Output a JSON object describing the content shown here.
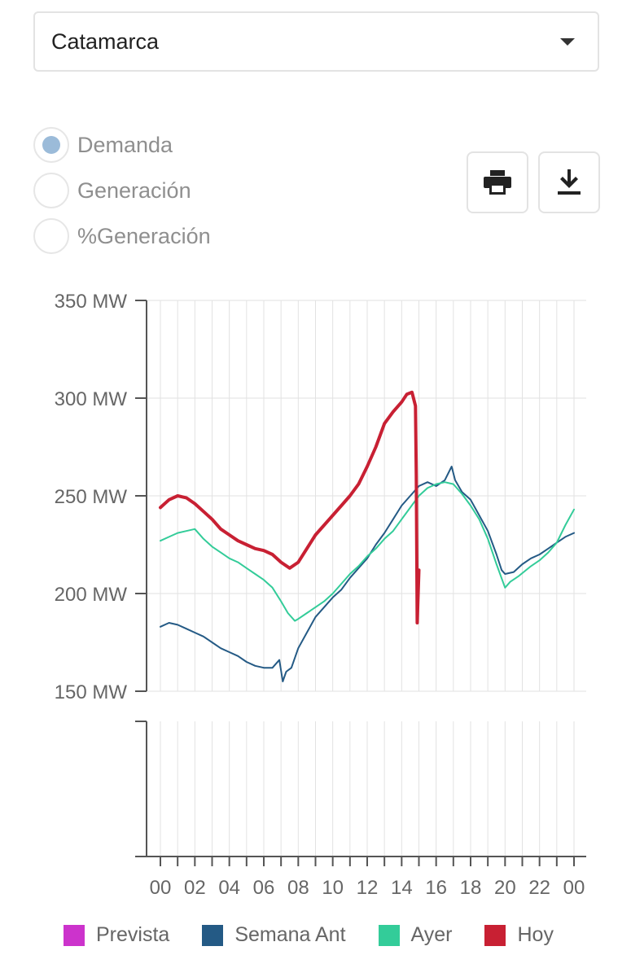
{
  "selector": {
    "value": "Catamarca"
  },
  "radios": [
    {
      "label": "Demanda",
      "selected": true
    },
    {
      "label": "Generación",
      "selected": false
    },
    {
      "label": "%Generación",
      "selected": false
    }
  ],
  "buttons": {
    "print_icon": "print-icon",
    "download_icon": "download-icon"
  },
  "chart_data": {
    "type": "line",
    "y_unit": "MW",
    "ylim": [
      150,
      350
    ],
    "yticks": [
      "350 MW",
      "300 MW",
      "250 MW",
      "200 MW",
      "150 MW"
    ],
    "xlim": [
      0,
      24
    ],
    "xticks": [
      "00",
      "02",
      "04",
      "06",
      "08",
      "10",
      "12",
      "14",
      "16",
      "18",
      "20",
      "22",
      "00"
    ],
    "grid": true,
    "legend_position": "bottom",
    "series": [
      {
        "name": "Prevista",
        "color": "#cc33cc",
        "points": []
      },
      {
        "name": "Semana Ant",
        "color": "#245a85",
        "points": [
          [
            0,
            183
          ],
          [
            0.5,
            185
          ],
          [
            1,
            184
          ],
          [
            1.5,
            182
          ],
          [
            2,
            180
          ],
          [
            2.5,
            178
          ],
          [
            3,
            175
          ],
          [
            3.5,
            172
          ],
          [
            4,
            170
          ],
          [
            4.5,
            168
          ],
          [
            5,
            165
          ],
          [
            5.5,
            163
          ],
          [
            6,
            162
          ],
          [
            6.5,
            162
          ],
          [
            6.9,
            166
          ],
          [
            7.1,
            155
          ],
          [
            7.3,
            160
          ],
          [
            7.6,
            162
          ],
          [
            8,
            172
          ],
          [
            8.5,
            180
          ],
          [
            9,
            188
          ],
          [
            9.5,
            193
          ],
          [
            10,
            198
          ],
          [
            10.5,
            202
          ],
          [
            11,
            208
          ],
          [
            11.5,
            213
          ],
          [
            12,
            218
          ],
          [
            12.5,
            225
          ],
          [
            13,
            231
          ],
          [
            13.5,
            238
          ],
          [
            14,
            245
          ],
          [
            14.5,
            250
          ],
          [
            15,
            255
          ],
          [
            15.5,
            257
          ],
          [
            16,
            255
          ],
          [
            16.5,
            258
          ],
          [
            16.9,
            265
          ],
          [
            17.1,
            258
          ],
          [
            17.5,
            252
          ],
          [
            18,
            248
          ],
          [
            18.5,
            240
          ],
          [
            19,
            232
          ],
          [
            19.5,
            220
          ],
          [
            19.8,
            212
          ],
          [
            20,
            210
          ],
          [
            20.5,
            211
          ],
          [
            21,
            215
          ],
          [
            21.5,
            218
          ],
          [
            22,
            220
          ],
          [
            22.5,
            223
          ],
          [
            23,
            226
          ],
          [
            23.5,
            229
          ],
          [
            24,
            231
          ]
        ]
      },
      {
        "name": "Ayer",
        "color": "#33cc99",
        "points": [
          [
            0,
            227
          ],
          [
            0.5,
            229
          ],
          [
            1,
            231
          ],
          [
            1.5,
            232
          ],
          [
            2,
            233
          ],
          [
            2.5,
            228
          ],
          [
            3,
            224
          ],
          [
            3.5,
            221
          ],
          [
            4,
            218
          ],
          [
            4.5,
            216
          ],
          [
            5,
            213
          ],
          [
            5.5,
            210
          ],
          [
            6,
            207
          ],
          [
            6.5,
            203
          ],
          [
            7,
            196
          ],
          [
            7.4,
            190
          ],
          [
            7.8,
            186
          ],
          [
            8,
            187
          ],
          [
            8.5,
            190
          ],
          [
            9,
            193
          ],
          [
            9.5,
            196
          ],
          [
            10,
            200
          ],
          [
            10.5,
            205
          ],
          [
            11,
            210
          ],
          [
            11.5,
            214
          ],
          [
            12,
            219
          ],
          [
            12.5,
            223
          ],
          [
            13,
            228
          ],
          [
            13.5,
            232
          ],
          [
            14,
            238
          ],
          [
            14.5,
            244
          ],
          [
            15,
            250
          ],
          [
            15.5,
            254
          ],
          [
            16,
            256
          ],
          [
            16.5,
            257
          ],
          [
            17,
            256
          ],
          [
            17.5,
            251
          ],
          [
            18,
            245
          ],
          [
            18.5,
            238
          ],
          [
            19,
            228
          ],
          [
            19.5,
            215
          ],
          [
            20,
            203
          ],
          [
            20.3,
            206
          ],
          [
            20.8,
            209
          ],
          [
            21.5,
            214
          ],
          [
            22,
            217
          ],
          [
            22.5,
            221
          ],
          [
            23,
            226
          ],
          [
            23.5,
            235
          ],
          [
            24,
            243
          ]
        ]
      },
      {
        "name": "Hoy",
        "color": "#c82033",
        "points": [
          [
            0,
            244
          ],
          [
            0.5,
            248
          ],
          [
            1,
            250
          ],
          [
            1.5,
            249
          ],
          [
            2,
            246
          ],
          [
            2.5,
            242
          ],
          [
            3,
            238
          ],
          [
            3.5,
            233
          ],
          [
            4,
            230
          ],
          [
            4.5,
            227
          ],
          [
            5,
            225
          ],
          [
            5.5,
            223
          ],
          [
            6,
            222
          ],
          [
            6.5,
            220
          ],
          [
            7,
            216
          ],
          [
            7.5,
            213
          ],
          [
            8,
            216
          ],
          [
            8.5,
            223
          ],
          [
            9,
            230
          ],
          [
            9.5,
            235
          ],
          [
            10,
            240
          ],
          [
            10.5,
            245
          ],
          [
            11,
            250
          ],
          [
            11.5,
            256
          ],
          [
            12,
            265
          ],
          [
            12.5,
            275
          ],
          [
            13,
            287
          ],
          [
            13.5,
            293
          ],
          [
            14,
            298
          ],
          [
            14.3,
            302
          ],
          [
            14.6,
            303
          ],
          [
            14.8,
            296
          ],
          [
            14.85,
            260
          ],
          [
            14.9,
            185
          ],
          [
            15.0,
            212
          ]
        ]
      }
    ]
  }
}
